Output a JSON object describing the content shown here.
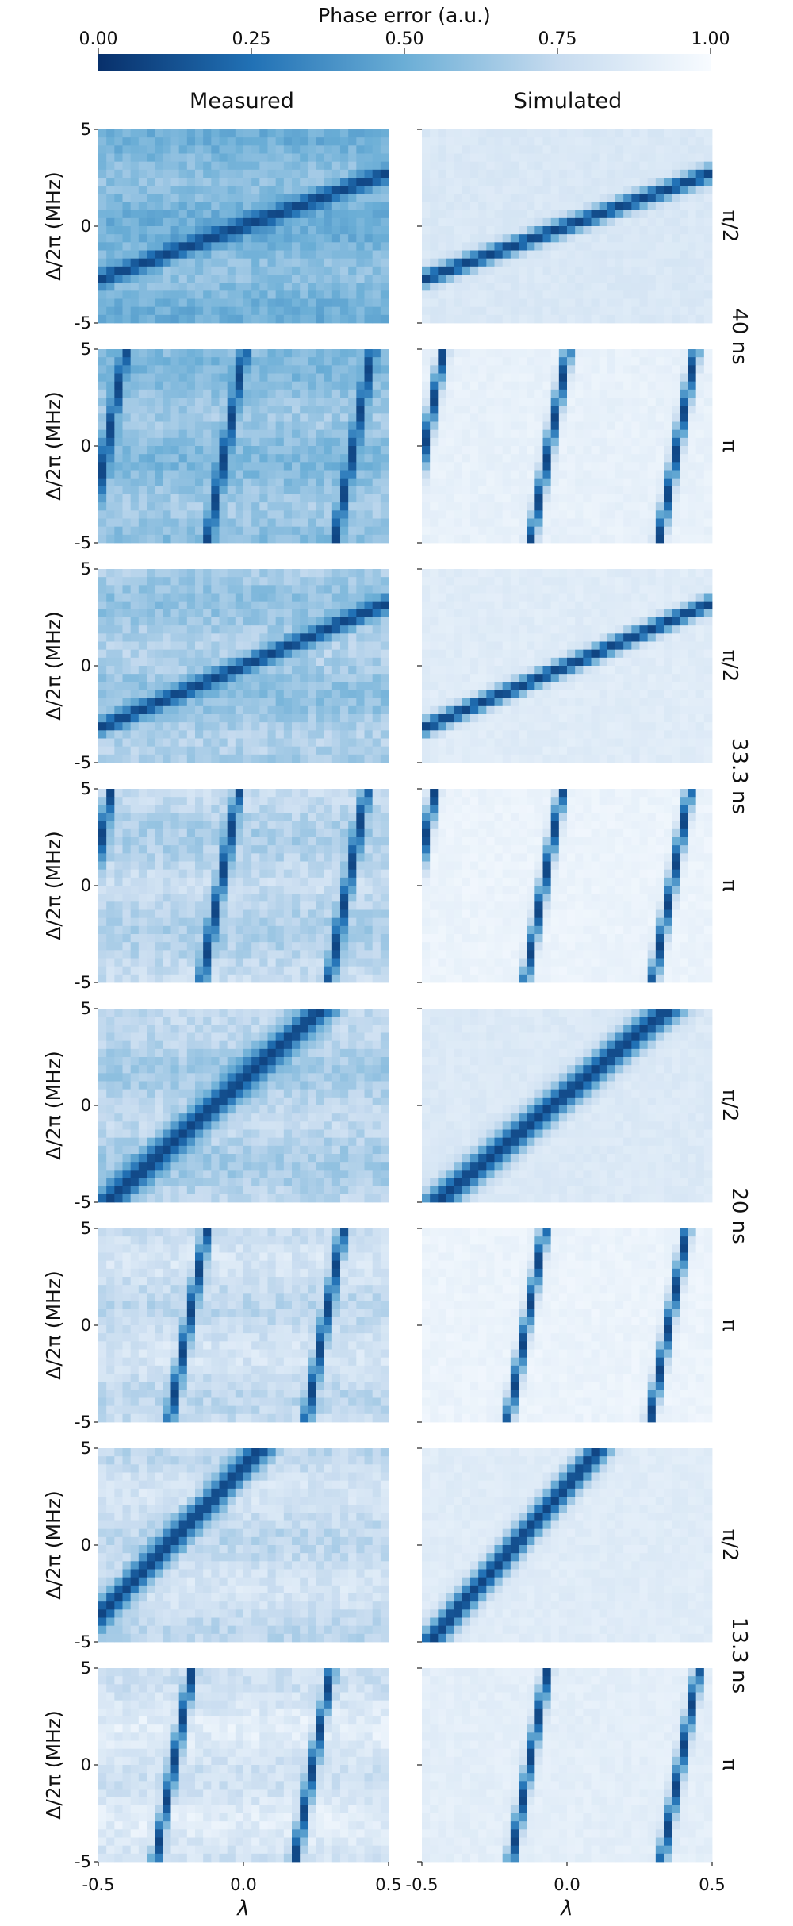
{
  "colorbar": {
    "title": "Phase error (a.u.)",
    "ticks": [
      "0.00",
      "0.25",
      "0.50",
      "0.75",
      "1.00"
    ],
    "tick_values": [
      0,
      0.25,
      0.5,
      0.75,
      1.0
    ],
    "color_low": "#08306b",
    "color_high": "#f7fbff"
  },
  "columns": [
    "Measured",
    "Simulated"
  ],
  "row_labels": [
    "π/2",
    "π",
    "π/2",
    "π",
    "π/2",
    "π",
    "π/2",
    "π"
  ],
  "group_labels": [
    "40 ns",
    "33.3 ns",
    "20 ns",
    "13.3 ns"
  ],
  "axes": {
    "ylabel": "Δ/2π (MHz)",
    "xlabel": "λ",
    "yticks": [
      "5",
      "0",
      "-5"
    ],
    "xticks": [
      "-0.5",
      "0.0",
      "0.5"
    ]
  },
  "chart_data": {
    "type": "heatmap",
    "title": "",
    "colorbar_label": "Phase error (a.u.)",
    "value_range": [
      0,
      1
    ],
    "colormap": "Blues (reversed: 0 = dark blue, 1 = white)",
    "x_range": [
      -0.5,
      0.5
    ],
    "y_range": [
      -5,
      5
    ],
    "xlabel": "λ",
    "ylabel": "Δ/2π (MHz)",
    "panels": [
      {
        "column": "Measured",
        "pulse": "π/2",
        "duration": "40 ns",
        "line_type": "shallow",
        "minimum_lines": [
          {
            "lambda_at_0MHz": 0.0,
            "slope_MHz_per_unit": 5.5
          }
        ],
        "bg_error": 0.55
      },
      {
        "column": "Simulated",
        "pulse": "π/2",
        "duration": "40 ns",
        "line_type": "shallow",
        "minimum_lines": [
          {
            "lambda_at_0MHz": 0.0,
            "slope_MHz_per_unit": 5.5
          }
        ],
        "bg_error": 0.85
      },
      {
        "column": "Measured",
        "pulse": "π",
        "duration": "40 ns",
        "line_type": "steep",
        "minimum_lines": [
          {
            "lambda_at_0MHz": -0.47
          },
          {
            "lambda_at_0MHz": -0.06
          },
          {
            "lambda_at_0MHz": 0.38
          }
        ],
        "bg_error": 0.6
      },
      {
        "column": "Simulated",
        "pulse": "π",
        "duration": "40 ns",
        "line_type": "steep",
        "minimum_lines": [
          {
            "lambda_at_0MHz": -0.49
          },
          {
            "lambda_at_0MHz": -0.06
          },
          {
            "lambda_at_0MHz": 0.38
          }
        ],
        "bg_error": 0.92
      },
      {
        "column": "Measured",
        "pulse": "π/2",
        "duration": "33.3 ns",
        "line_type": "shallow",
        "minimum_lines": [
          {
            "lambda_at_0MHz": 0.0,
            "slope_MHz_per_unit": 6.5
          }
        ],
        "bg_error": 0.65
      },
      {
        "column": "Simulated",
        "pulse": "π/2",
        "duration": "33.3 ns",
        "line_type": "shallow",
        "minimum_lines": [
          {
            "lambda_at_0MHz": 0.0,
            "slope_MHz_per_unit": 6.5
          }
        ],
        "bg_error": 0.88
      },
      {
        "column": "Measured",
        "pulse": "π",
        "duration": "33.3 ns",
        "line_type": "steep",
        "minimum_lines": [
          {
            "lambda_at_0MHz": -0.52
          },
          {
            "lambda_at_0MHz": -0.08
          },
          {
            "lambda_at_0MHz": 0.36
          }
        ],
        "bg_error": 0.72
      },
      {
        "column": "Simulated",
        "pulse": "π",
        "duration": "33.3 ns",
        "line_type": "steep",
        "minimum_lines": [
          {
            "lambda_at_0MHz": -0.52
          },
          {
            "lambda_at_0MHz": -0.08
          },
          {
            "lambda_at_0MHz": 0.36
          }
        ],
        "bg_error": 0.94
      },
      {
        "column": "Measured",
        "pulse": "π/2",
        "duration": "20 ns",
        "line_type": "diagonal",
        "minimum_lines": [
          {
            "lambda_at_0MHz": -0.1,
            "slope_MHz_per_unit": 13.5
          }
        ],
        "bg_error": 0.7
      },
      {
        "column": "Simulated",
        "pulse": "π/2",
        "duration": "20 ns",
        "line_type": "diagonal",
        "minimum_lines": [
          {
            "lambda_at_0MHz": -0.05,
            "slope_MHz_per_unit": 12.5
          }
        ],
        "bg_error": 0.86
      },
      {
        "column": "Measured",
        "pulse": "π",
        "duration": "20 ns",
        "line_type": "steep",
        "minimum_lines": [
          {
            "lambda_at_0MHz": -0.19
          },
          {
            "lambda_at_0MHz": 0.28
          }
        ],
        "bg_error": 0.78
      },
      {
        "column": "Simulated",
        "pulse": "π",
        "duration": "20 ns",
        "line_type": "steep",
        "minimum_lines": [
          {
            "lambda_at_0MHz": -0.14
          },
          {
            "lambda_at_0MHz": 0.35
          }
        ],
        "bg_error": 0.94
      },
      {
        "column": "Measured",
        "pulse": "π/2",
        "duration": "13.3 ns",
        "line_type": "diagonal",
        "minimum_lines": [
          {
            "lambda_at_0MHz": -0.26,
            "slope_MHz_per_unit": 15.5
          }
        ],
        "bg_error": 0.78
      },
      {
        "column": "Simulated",
        "pulse": "π/2",
        "duration": "13.3 ns",
        "line_type": "diagonal",
        "minimum_lines": [
          {
            "lambda_at_0MHz": -0.18,
            "slope_MHz_per_unit": 17.0
          }
        ],
        "bg_error": 0.88
      },
      {
        "column": "Measured",
        "pulse": "π",
        "duration": "13.3 ns",
        "line_type": "steep",
        "minimum_lines": [
          {
            "lambda_at_0MHz": -0.24
          },
          {
            "lambda_at_0MHz": 0.24
          }
        ],
        "bg_error": 0.84
      },
      {
        "column": "Simulated",
        "pulse": "π",
        "duration": "13.3 ns",
        "line_type": "steep",
        "minimum_lines": [
          {
            "lambda_at_0MHz": -0.13
          },
          {
            "lambda_at_0MHz": 0.39
          }
        ],
        "bg_error": 0.9
      }
    ]
  }
}
